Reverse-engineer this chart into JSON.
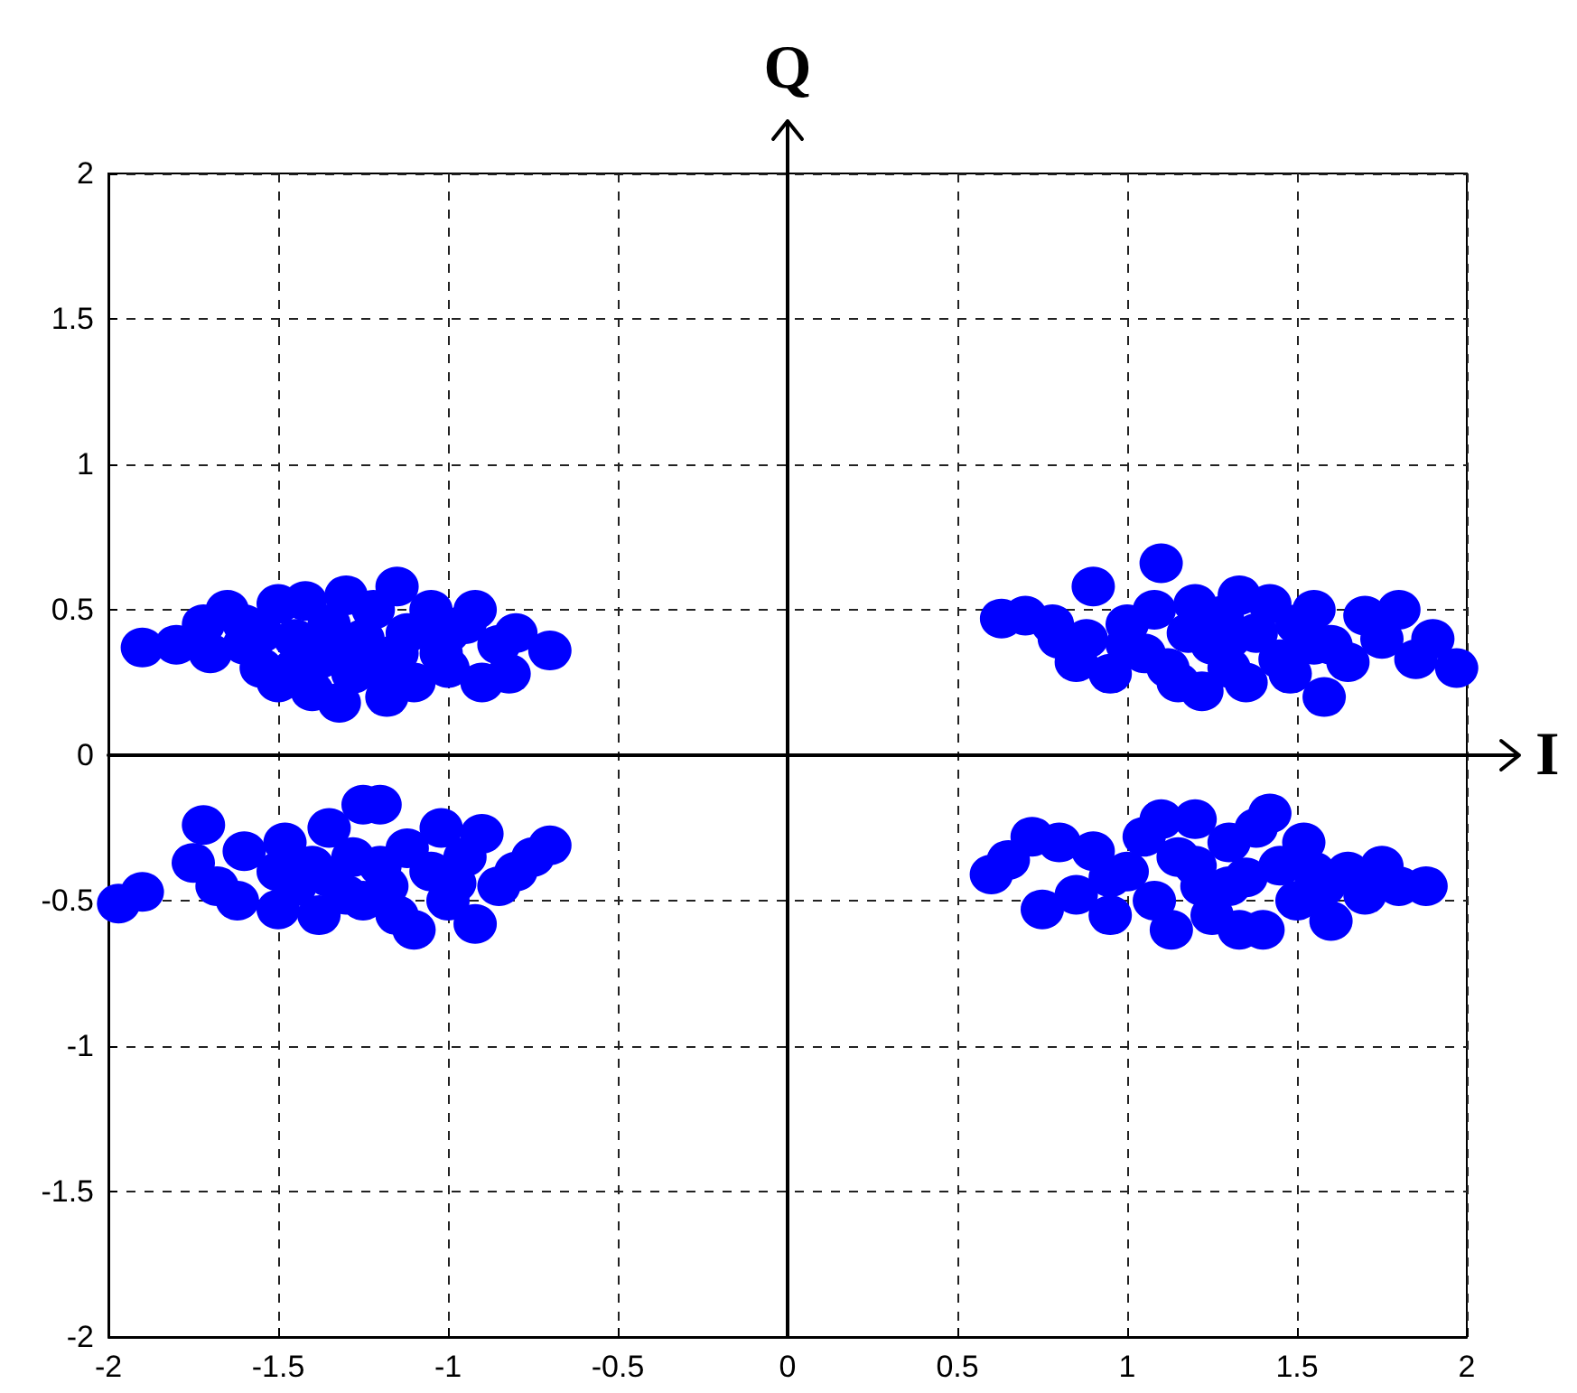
{
  "chart_data": {
    "type": "scatter",
    "xlabel": "I",
    "ylabel": "Q",
    "xlim": [
      -2,
      2
    ],
    "ylim": [
      -2,
      2
    ],
    "xticks": [
      -2,
      -1.5,
      -1,
      -0.5,
      0,
      0.5,
      1,
      1.5,
      2
    ],
    "yticks": [
      -2,
      -1.5,
      -1,
      -0.5,
      0,
      0.5,
      1,
      1.5,
      2
    ],
    "grid": true,
    "marker": "circle",
    "series": [
      {
        "color": "#0000ff",
        "x": [
          -1.9,
          -1.8,
          -1.72,
          -1.65,
          -1.6,
          -1.55,
          -1.5,
          -1.5,
          -1.45,
          -1.42,
          -1.4,
          -1.38,
          -1.35,
          -1.32,
          -1.3,
          -1.28,
          -1.25,
          -1.22,
          -1.2,
          -1.18,
          -1.15,
          -1.12,
          -1.1,
          -1.05,
          -1.02,
          -1.0,
          -0.95,
          -0.92,
          -0.9,
          -0.85,
          -0.82,
          -0.8,
          -0.7,
          -1.6,
          -1.7,
          -1.45,
          -1.3,
          -1.15,
          -1.0,
          -1.55,
          0.63,
          0.7,
          0.78,
          0.85,
          0.88,
          0.9,
          0.95,
          1.0,
          1.05,
          1.08,
          1.1,
          1.12,
          1.15,
          1.18,
          1.2,
          1.22,
          1.25,
          1.28,
          1.3,
          1.33,
          1.35,
          1.38,
          1.42,
          1.45,
          1.48,
          1.5,
          1.55,
          1.58,
          1.6,
          1.65,
          1.7,
          1.75,
          1.8,
          1.85,
          1.9,
          1.97,
          1.0,
          1.3,
          1.55,
          0.8,
          -1.97,
          -1.9,
          -1.75,
          -1.72,
          -1.68,
          -1.62,
          -1.6,
          -1.5,
          -1.48,
          -1.45,
          -1.4,
          -1.38,
          -1.35,
          -1.3,
          -1.28,
          -1.25,
          -1.2,
          -1.18,
          -1.15,
          -1.12,
          -1.1,
          -1.05,
          -1.02,
          -1.0,
          -0.95,
          -0.92,
          -0.9,
          -0.85,
          -0.8,
          -0.75,
          -0.7,
          -1.35,
          -1.2,
          -1.5,
          -1.25,
          -0.98,
          0.6,
          0.65,
          0.72,
          0.75,
          0.8,
          0.85,
          0.9,
          0.95,
          1.0,
          1.05,
          1.08,
          1.1,
          1.13,
          1.15,
          1.2,
          1.22,
          1.25,
          1.3,
          1.33,
          1.35,
          1.38,
          1.4,
          1.42,
          1.45,
          1.5,
          1.52,
          1.58,
          1.6,
          1.65,
          1.7,
          1.75,
          1.8,
          1.88,
          1.2,
          0.95,
          1.55,
          1.3
        ],
        "values": [
          0.37,
          0.38,
          0.45,
          0.5,
          0.38,
          0.3,
          0.52,
          0.25,
          0.4,
          0.53,
          0.22,
          0.33,
          0.45,
          0.18,
          0.55,
          0.28,
          0.4,
          0.5,
          0.3,
          0.2,
          0.58,
          0.42,
          0.25,
          0.5,
          0.35,
          0.3,
          0.45,
          0.5,
          0.25,
          0.38,
          0.28,
          0.42,
          0.36,
          0.45,
          0.35,
          0.3,
          0.38,
          0.35,
          0.42,
          0.42,
          0.47,
          0.48,
          0.45,
          0.32,
          0.4,
          0.58,
          0.28,
          0.45,
          0.35,
          0.5,
          0.66,
          0.3,
          0.25,
          0.42,
          0.52,
          0.22,
          0.38,
          0.48,
          0.3,
          0.55,
          0.25,
          0.42,
          0.52,
          0.33,
          0.28,
          0.45,
          0.5,
          0.2,
          0.38,
          0.32,
          0.48,
          0.4,
          0.5,
          0.33,
          0.4,
          0.3,
          0.38,
          0.4,
          0.38,
          0.4,
          -0.51,
          -0.47,
          -0.37,
          -0.24,
          -0.45,
          -0.5,
          -0.33,
          -0.53,
          -0.3,
          -0.45,
          -0.38,
          -0.55,
          -0.25,
          -0.48,
          -0.35,
          -0.17,
          -0.17,
          -0.45,
          -0.55,
          -0.32,
          -0.6,
          -0.4,
          -0.25,
          -0.5,
          -0.35,
          -0.58,
          -0.27,
          -0.45,
          -0.4,
          -0.35,
          -0.31,
          -0.42,
          -0.38,
          -0.4,
          -0.5,
          -0.44,
          -0.41,
          -0.36,
          -0.28,
          -0.53,
          -0.3,
          -0.48,
          -0.33,
          -0.55,
          -0.4,
          -0.28,
          -0.5,
          -0.22,
          -0.6,
          -0.35,
          -0.22,
          -0.45,
          -0.55,
          -0.3,
          -0.6,
          -0.42,
          -0.25,
          -0.6,
          -0.2,
          -0.38,
          -0.5,
          -0.3,
          -0.45,
          -0.57,
          -0.4,
          -0.48,
          -0.38,
          -0.45,
          -0.45,
          -0.38,
          -0.42,
          -0.4,
          -0.45
        ]
      }
    ]
  }
}
